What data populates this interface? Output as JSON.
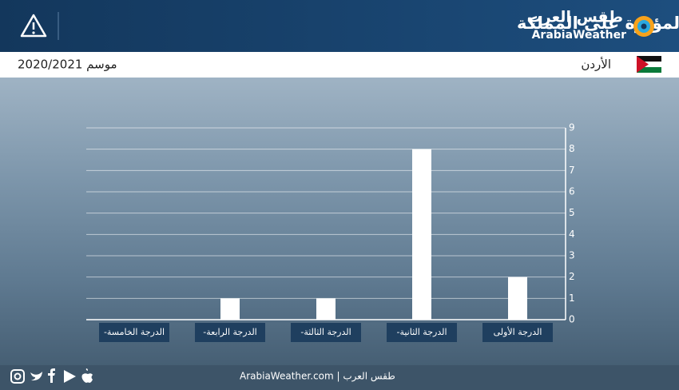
{
  "header": {
    "title": "إجمالي المُنخفضات الجوية المؤثرة على المملكة",
    "logo_ar": "طقس العرب",
    "logo_en": "ArabiaWeather"
  },
  "subheader": {
    "season": "موسم 2020/2021",
    "country": "الأردن"
  },
  "chart_data": {
    "type": "bar",
    "categories": [
      "الدرجة الأولى",
      "الدرجة الثانية-",
      "الدرجة الثالثة-",
      "الدرجة الرابعة-",
      "الدرجة الخامسة-"
    ],
    "values": [
      2,
      8,
      1,
      1,
      0
    ],
    "color": "#ffffff",
    "ylim": [
      0,
      9
    ],
    "yticks": [
      0,
      1,
      2,
      3,
      4,
      5,
      6,
      7,
      8,
      9
    ],
    "grid": true,
    "axis_side": "right",
    "category_order": "right-to-left"
  },
  "footer": {
    "text": "طقس العرب | ArabiaWeather.com"
  }
}
